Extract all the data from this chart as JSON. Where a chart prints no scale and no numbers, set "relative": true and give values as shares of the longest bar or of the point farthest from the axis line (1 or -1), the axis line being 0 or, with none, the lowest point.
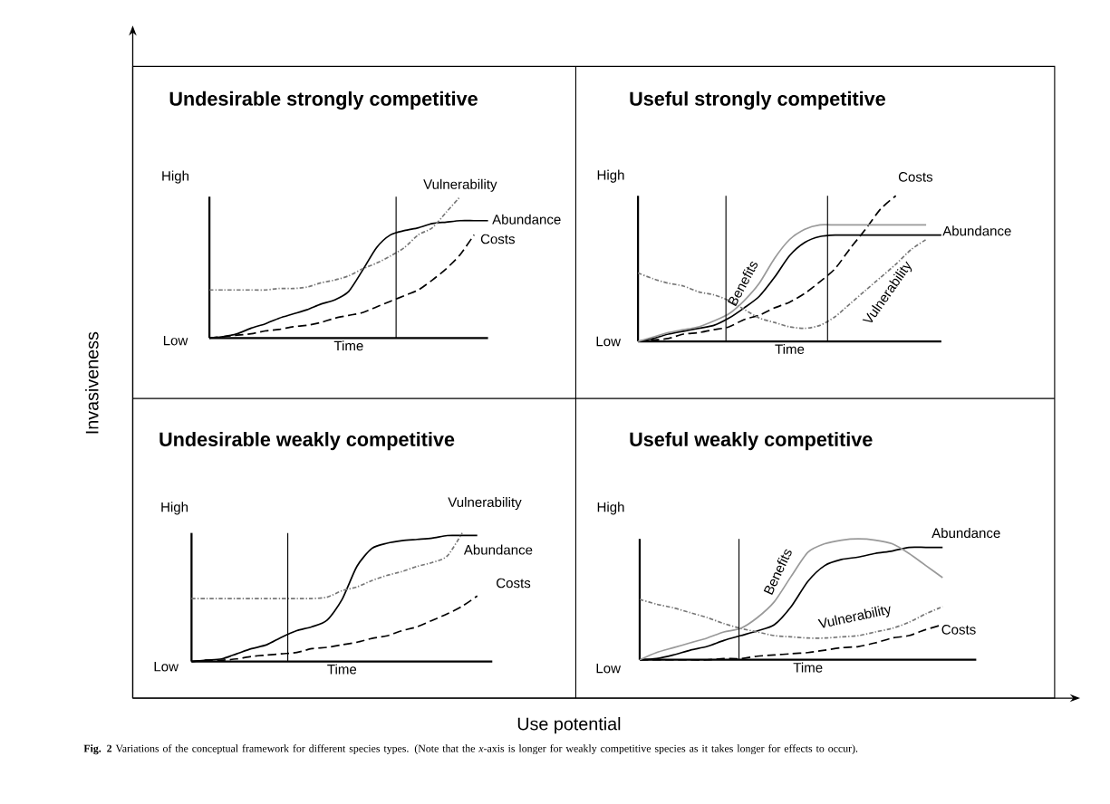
{
  "chart_data": [
    {
      "type": "line",
      "relative": true,
      "title": "Undesirable strongly competitive",
      "xlabel": "Time",
      "categories": [
        null,
        null,
        null,
        null,
        null,
        null,
        null,
        null,
        null,
        null,
        null,
        null,
        null,
        null,
        null,
        null,
        null,
        null,
        null,
        null,
        null
      ],
      "annotations": [
        "High",
        "Low"
      ],
      "series": [
        {
          "name": "Abundance",
          "color": "#000000",
          "line_style": "solid",
          "values": [
            0,
            0.01,
            0.03,
            0.07,
            0.1,
            0.14,
            0.17,
            0.2,
            0.24,
            0.27,
            0.33,
            0.48,
            0.64,
            0.73,
            0.76,
            0.78,
            0.81,
            0.82,
            0.83,
            0.83,
            0.83
          ]
        },
        {
          "name": "Costs",
          "color": "#000000",
          "line_style": "dashed",
          "values": [
            0,
            0.01,
            0.02,
            0.03,
            0.05,
            0.06,
            0.08,
            0.09,
            0.11,
            0.14,
            0.16,
            0.18,
            0.22,
            0.26,
            0.3,
            0.34,
            0.41,
            0.49,
            0.59,
            0.73,
            null
          ]
        },
        {
          "name": "Vulnerability",
          "color": "#777777",
          "line_style": "dotted",
          "values": [
            0.34,
            0.34,
            0.34,
            0.34,
            0.34,
            0.35,
            0.35,
            0.36,
            0.39,
            0.41,
            0.44,
            0.49,
            0.53,
            0.58,
            0.64,
            0.73,
            0.78,
            0.89,
            1.0,
            null,
            null
          ]
        }
      ]
    },
    {
      "type": "line",
      "relative": true,
      "title": "Useful strongly competitive",
      "xlabel": "Time",
      "categories": [
        null,
        null,
        null,
        null,
        null,
        null,
        null,
        null,
        null,
        null,
        null,
        null,
        null,
        null,
        null,
        null,
        null,
        null,
        null,
        null,
        null
      ],
      "annotations": [
        "High",
        "Low"
      ],
      "series": [
        {
          "name": "Abundance",
          "color": "#000000",
          "line_style": "solid",
          "values": [
            0,
            0.02,
            0.05,
            0.07,
            0.09,
            0.11,
            0.16,
            0.23,
            0.31,
            0.44,
            0.59,
            0.68,
            0.72,
            0.73,
            0.73,
            0.73,
            0.73,
            0.73,
            0.73,
            0.73,
            0.73
          ]
        },
        {
          "name": "Costs",
          "color": "#000000",
          "line_style": "dashed",
          "values": [
            0,
            0.01,
            0.02,
            0.05,
            0.06,
            0.08,
            0.1,
            0.15,
            0.18,
            0.23,
            0.27,
            0.33,
            0.41,
            0.5,
            0.64,
            0.77,
            0.91,
            1.0,
            null,
            null,
            null
          ]
        },
        {
          "name": "Vulnerability",
          "color": "#777777",
          "line_style": "dotted",
          "values": [
            0.47,
            0.43,
            0.4,
            0.38,
            0.34,
            0.32,
            0.28,
            0.22,
            0.16,
            0.13,
            0.1,
            0.09,
            0.11,
            0.17,
            0.26,
            0.35,
            0.44,
            0.53,
            0.63,
            0.7,
            null
          ]
        },
        {
          "name": "Benefits",
          "color": "#999999",
          "line_style": "solid",
          "values": [
            0,
            0.03,
            0.06,
            0.08,
            0.1,
            0.14,
            0.19,
            0.28,
            0.4,
            0.57,
            0.7,
            0.77,
            0.8,
            0.8,
            0.8,
            0.8,
            0.8,
            0.8,
            0.8,
            0.8,
            null
          ]
        }
      ]
    },
    {
      "type": "line",
      "relative": true,
      "title": "Undesirable weakly competitive",
      "xlabel": "Time",
      "categories": [
        null,
        null,
        null,
        null,
        null,
        null,
        null,
        null,
        null,
        null,
        null,
        null,
        null,
        null,
        null,
        null,
        null,
        null,
        null,
        null,
        null
      ],
      "annotations": [
        "High",
        "Low"
      ],
      "series": [
        {
          "name": "Abundance",
          "color": "#000000",
          "line_style": "solid",
          "values": [
            0,
            0.01,
            0.02,
            0.06,
            0.1,
            0.13,
            0.19,
            0.24,
            0.27,
            0.32,
            0.48,
            0.74,
            0.88,
            0.92,
            0.94,
            0.95,
            0.96,
            0.98,
            0.98,
            0.98,
            null
          ]
        },
        {
          "name": "Costs",
          "color": "#000000",
          "line_style": "dashed",
          "values": [
            0,
            0.01,
            0.01,
            0.02,
            0.04,
            0.05,
            0.06,
            0.07,
            0.1,
            0.11,
            0.13,
            0.15,
            0.18,
            0.2,
            0.24,
            0.27,
            0.32,
            0.37,
            0.43,
            0.51,
            null
          ]
        },
        {
          "name": "Vulnerability",
          "color": "#777777",
          "line_style": "dotted",
          "values": [
            0.49,
            0.49,
            0.49,
            0.49,
            0.49,
            0.49,
            0.49,
            0.49,
            0.49,
            0.5,
            0.55,
            0.58,
            0.63,
            0.67,
            0.7,
            0.74,
            0.77,
            0.82,
            1.0,
            null,
            null
          ]
        }
      ]
    },
    {
      "type": "line",
      "relative": true,
      "title": "Useful weakly competitive",
      "xlabel": "Time",
      "categories": [
        null,
        null,
        null,
        null,
        null,
        null,
        null,
        null,
        null,
        null,
        null,
        null,
        null,
        null,
        null,
        null,
        null,
        null,
        null,
        null,
        null
      ],
      "annotations": [
        "High",
        "Low"
      ],
      "series": [
        {
          "name": "Abundance",
          "color": "#000000",
          "line_style": "solid",
          "values": [
            0,
            0.01,
            0.04,
            0.08,
            0.11,
            0.16,
            0.2,
            0.24,
            0.29,
            0.44,
            0.65,
            0.78,
            0.83,
            0.85,
            0.88,
            0.9,
            0.93,
            0.93,
            0.93,
            null,
            null
          ]
        },
        {
          "name": "Costs",
          "color": "#000000",
          "line_style": "dashed",
          "values": [
            0,
            0,
            0,
            0,
            0,
            0.01,
            0.01,
            0.03,
            0.04,
            0.05,
            0.06,
            0.08,
            0.1,
            0.11,
            0.14,
            0.18,
            0.2,
            0.25,
            0.29,
            null,
            null
          ]
        },
        {
          "name": "Vulnerability",
          "color": "#777777",
          "line_style": "dotted",
          "values": [
            0.5,
            0.46,
            0.43,
            0.39,
            0.35,
            0.3,
            0.26,
            0.23,
            0.2,
            0.19,
            0.18,
            0.18,
            0.19,
            0.2,
            0.23,
            0.26,
            0.31,
            0.38,
            0.44,
            null,
            null
          ]
        },
        {
          "name": "Benefits",
          "color": "#999999",
          "line_style": "solid",
          "values": [
            0,
            0.06,
            0.1,
            0.14,
            0.18,
            0.23,
            0.26,
            0.35,
            0.48,
            0.69,
            0.89,
            0.96,
            0.99,
            1.0,
            0.99,
            0.96,
            0.88,
            0.78,
            0.68,
            null,
            null
          ]
        }
      ]
    },
    {
      "type": "other",
      "xlabel": "Use potential",
      "ylabel": "Invasiveness",
      "annotations": [
        "**Fig. 2** Variations of the conceptual framework for different species types. (Note that the *x*-axis is longer for weakly competitive species as it takes longer for effects to occur)."
      ]
    }
  ]
}
